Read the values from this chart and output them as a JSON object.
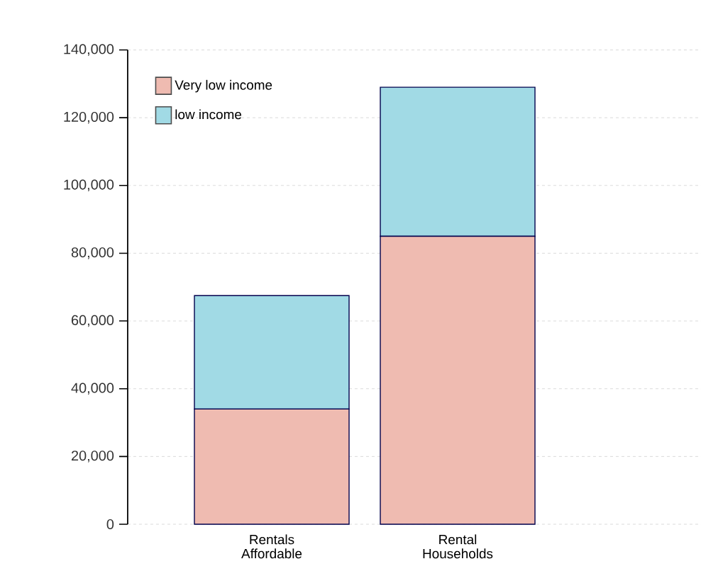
{
  "chart_data": {
    "type": "bar",
    "stacked": true,
    "categories": [
      "Rentals Affordable",
      "Rental Households"
    ],
    "series": [
      {
        "name": "Very low income",
        "color": "#efbbb1",
        "values": [
          34000,
          85000
        ]
      },
      {
        "name": "low income",
        "color": "#a1dae5",
        "values": [
          33500,
          44000
        ]
      }
    ],
    "ylim": [
      0,
      140000
    ],
    "yticks": [
      {
        "value": 0,
        "label": "0"
      },
      {
        "value": 20000,
        "label": "20,000"
      },
      {
        "value": 40000,
        "label": "40,000"
      },
      {
        "value": 60000,
        "label": "60,000"
      },
      {
        "value": 80000,
        "label": "80,000"
      },
      {
        "value": 100000,
        "label": "100,000"
      },
      {
        "value": 120000,
        "label": "120,000"
      },
      {
        "value": 140000,
        "label": "140,000"
      }
    ],
    "grid": "y",
    "legend": "top left"
  }
}
